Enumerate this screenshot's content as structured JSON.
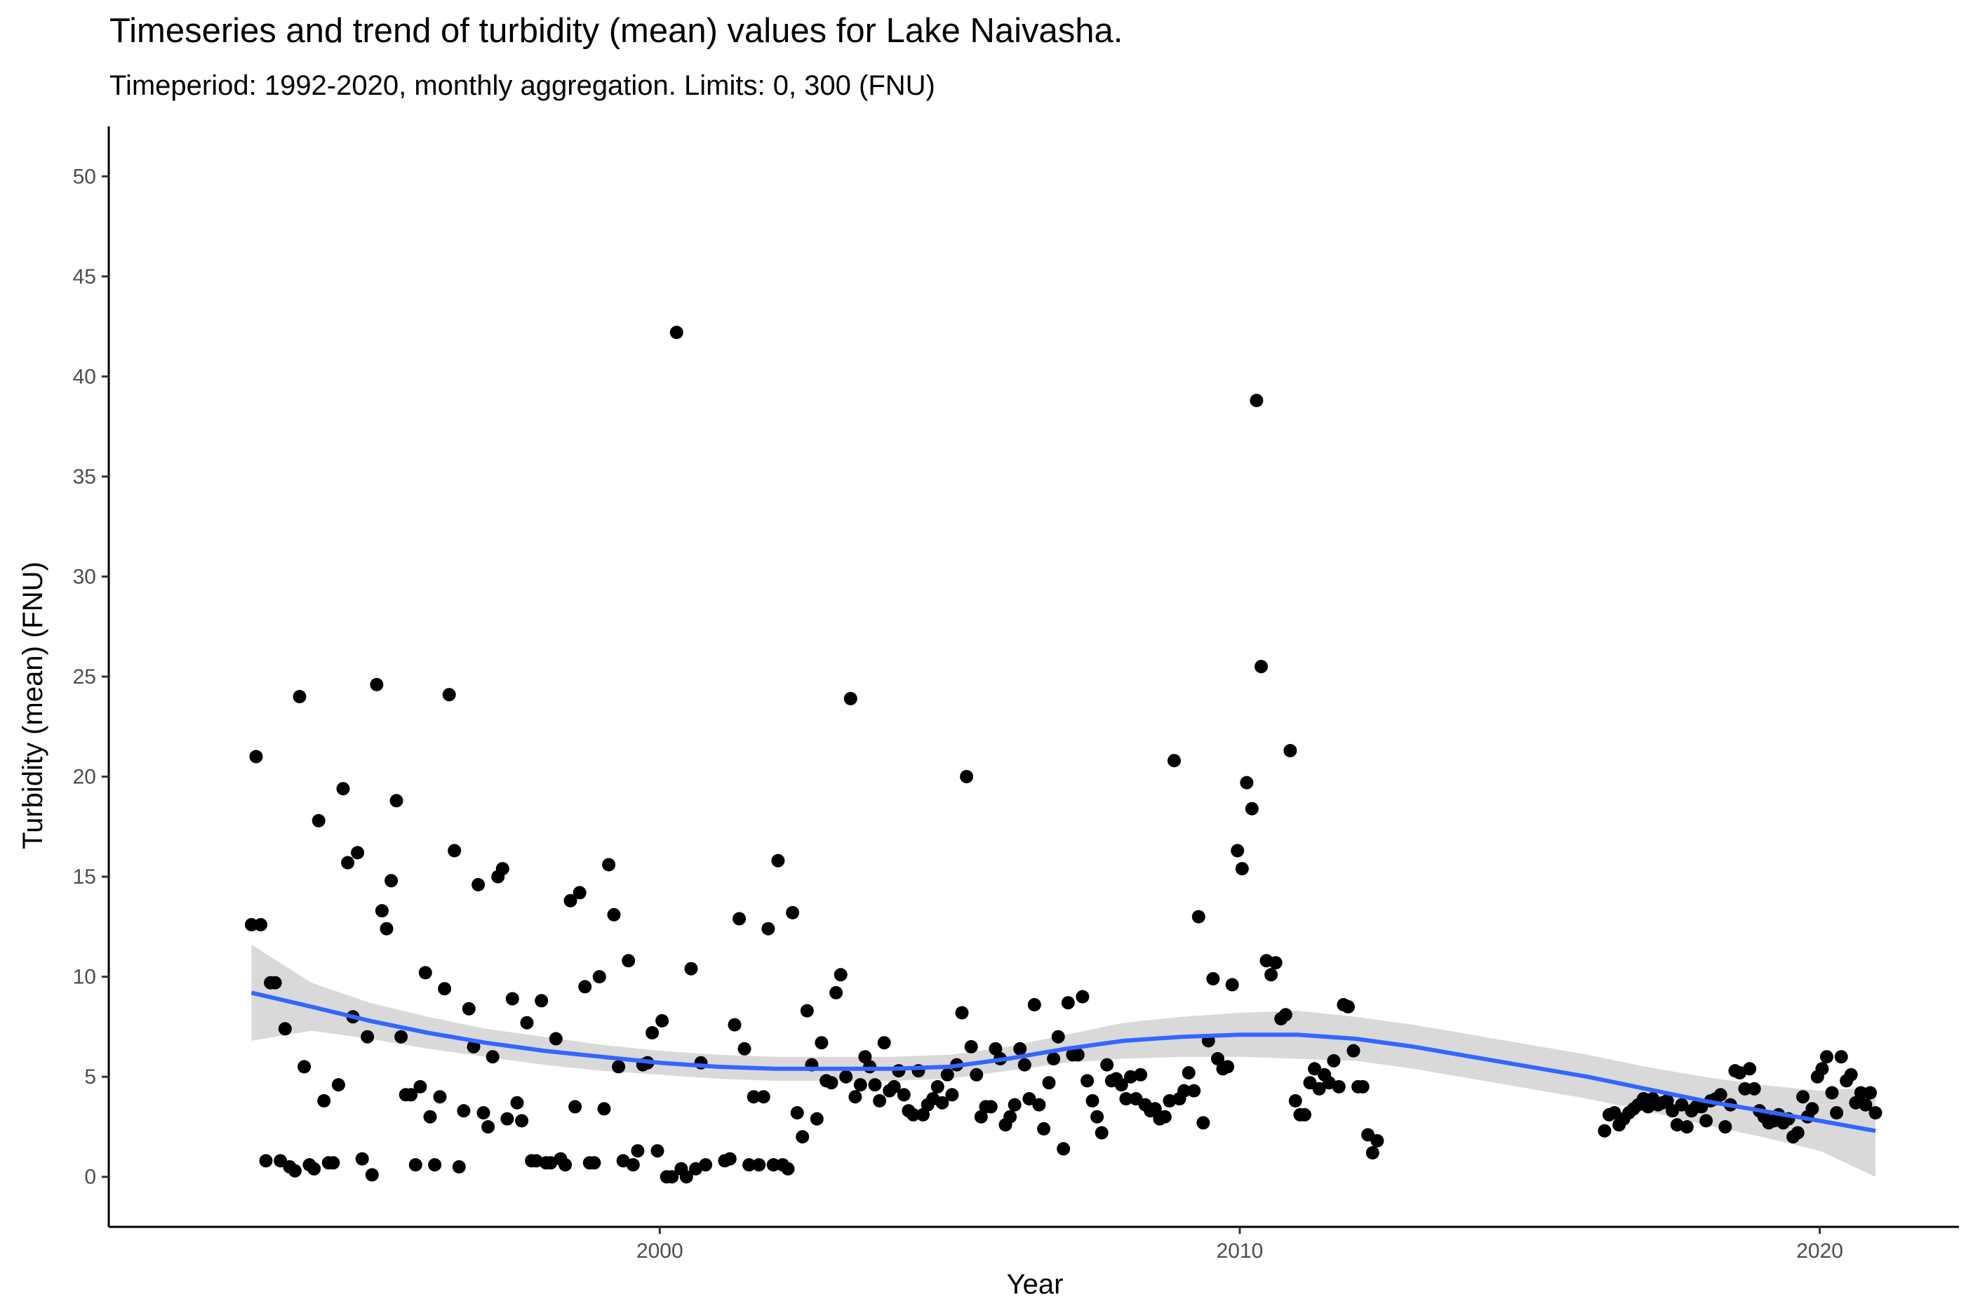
{
  "chart_data": {
    "type": "scatter",
    "title": "Timeseries and trend of turbidity (mean) values for Lake Naivasha.",
    "subtitle": "Timeperiod: 1992-2020, monthly aggregation. Limits: 0, 300 (FNU)",
    "xlabel": "Year",
    "ylabel": "Turbidity (mean) (FNU)",
    "xlim": [
      1990.5,
      2022.4
    ],
    "ylim": [
      -2.5,
      52.5
    ],
    "x_ticks": [
      2000,
      2010,
      2020
    ],
    "x_tick_labels": [
      "2000",
      "2010",
      "2020"
    ],
    "y_ticks": [
      0,
      5,
      10,
      15,
      20,
      25,
      30,
      35,
      40,
      45,
      50
    ],
    "y_tick_labels": [
      "0",
      "5",
      "10",
      "15",
      "20",
      "25",
      "30",
      "35",
      "40",
      "45",
      "50"
    ],
    "grid": false,
    "colors": {
      "points": "#000000",
      "trend": "#3366ff",
      "band": "#d9d9d9",
      "axis": "#000000",
      "tick_text": "#4d4d4d"
    },
    "points": [
      [
        1992.96,
        12.6
      ],
      [
        1993.04,
        21.0
      ],
      [
        1993.12,
        12.6
      ],
      [
        1993.21,
        0.8
      ],
      [
        1993.29,
        9.7
      ],
      [
        1993.37,
        9.7
      ],
      [
        1993.46,
        0.8
      ],
      [
        1993.54,
        7.4
      ],
      [
        1993.62,
        0.5
      ],
      [
        1993.71,
        0.3
      ],
      [
        1993.79,
        24.0
      ],
      [
        1993.87,
        5.5
      ],
      [
        1993.96,
        0.6
      ],
      [
        1994.04,
        0.4
      ],
      [
        1994.12,
        17.8
      ],
      [
        1994.21,
        3.8
      ],
      [
        1994.29,
        0.7
      ],
      [
        1994.37,
        0.7
      ],
      [
        1994.46,
        4.6
      ],
      [
        1994.54,
        19.4
      ],
      [
        1994.62,
        15.7
      ],
      [
        1994.71,
        8.0
      ],
      [
        1994.79,
        16.2
      ],
      [
        1994.87,
        0.9
      ],
      [
        1994.96,
        7.0
      ],
      [
        1995.04,
        0.1
      ],
      [
        1995.12,
        24.6
      ],
      [
        1995.21,
        13.3
      ],
      [
        1995.29,
        12.4
      ],
      [
        1995.37,
        14.8
      ],
      [
        1995.46,
        18.8
      ],
      [
        1995.54,
        7.0
      ],
      [
        1995.62,
        4.1
      ],
      [
        1995.71,
        4.1
      ],
      [
        1995.79,
        0.6
      ],
      [
        1995.87,
        4.5
      ],
      [
        1995.96,
        10.2
      ],
      [
        1996.04,
        3.0
      ],
      [
        1996.12,
        0.6
      ],
      [
        1996.21,
        4.0
      ],
      [
        1996.29,
        9.4
      ],
      [
        1996.37,
        24.1
      ],
      [
        1996.46,
        16.3
      ],
      [
        1996.54,
        0.5
      ],
      [
        1996.62,
        3.3
      ],
      [
        1996.71,
        8.4
      ],
      [
        1996.79,
        6.5
      ],
      [
        1996.87,
        14.6
      ],
      [
        1996.96,
        3.2
      ],
      [
        1997.04,
        2.5
      ],
      [
        1997.12,
        6.0
      ],
      [
        1997.21,
        15.0
      ],
      [
        1997.29,
        15.4
      ],
      [
        1997.37,
        2.9
      ],
      [
        1997.46,
        8.9
      ],
      [
        1997.54,
        3.7
      ],
      [
        1997.62,
        2.8
      ],
      [
        1997.71,
        7.7
      ],
      [
        1997.79,
        0.8
      ],
      [
        1997.87,
        0.8
      ],
      [
        1997.96,
        8.8
      ],
      [
        1998.04,
        0.7
      ],
      [
        1998.12,
        0.7
      ],
      [
        1998.21,
        6.9
      ],
      [
        1998.29,
        0.9
      ],
      [
        1998.37,
        0.6
      ],
      [
        1998.46,
        13.8
      ],
      [
        1998.54,
        3.5
      ],
      [
        1998.62,
        14.2
      ],
      [
        1998.71,
        9.5
      ],
      [
        1998.79,
        0.7
      ],
      [
        1998.87,
        0.7
      ],
      [
        1998.96,
        10.0
      ],
      [
        1999.04,
        3.4
      ],
      [
        1999.12,
        15.6
      ],
      [
        1999.21,
        13.1
      ],
      [
        1999.29,
        5.5
      ],
      [
        1999.37,
        0.8
      ],
      [
        1999.46,
        10.8
      ],
      [
        1999.54,
        0.6
      ],
      [
        1999.62,
        1.3
      ],
      [
        1999.71,
        5.6
      ],
      [
        1999.79,
        5.7
      ],
      [
        1999.87,
        7.2
      ],
      [
        1999.96,
        1.3
      ],
      [
        2000.04,
        7.8
      ],
      [
        2000.12,
        0.0
      ],
      [
        2000.21,
        0.0
      ],
      [
        2000.29,
        42.2
      ],
      [
        2000.37,
        0.4
      ],
      [
        2000.46,
        0.0
      ],
      [
        2000.54,
        10.4
      ],
      [
        2000.62,
        0.4
      ],
      [
        2000.71,
        5.7
      ],
      [
        2000.79,
        0.6
      ],
      [
        2001.12,
        0.8
      ],
      [
        2001.21,
        0.9
      ],
      [
        2001.29,
        7.6
      ],
      [
        2001.37,
        12.9
      ],
      [
        2001.46,
        6.4
      ],
      [
        2001.54,
        0.6
      ],
      [
        2001.62,
        4.0
      ],
      [
        2001.71,
        0.6
      ],
      [
        2001.79,
        4.0
      ],
      [
        2001.87,
        12.4
      ],
      [
        2001.96,
        0.6
      ],
      [
        2002.04,
        15.8
      ],
      [
        2002.12,
        0.6
      ],
      [
        2002.21,
        0.4
      ],
      [
        2002.29,
        13.2
      ],
      [
        2002.37,
        3.2
      ],
      [
        2002.46,
        2.0
      ],
      [
        2002.54,
        8.3
      ],
      [
        2002.62,
        5.6
      ],
      [
        2002.71,
        2.9
      ],
      [
        2002.79,
        6.7
      ],
      [
        2002.87,
        4.8
      ],
      [
        2002.96,
        4.7
      ],
      [
        2003.04,
        9.2
      ],
      [
        2003.12,
        10.1
      ],
      [
        2003.21,
        5.0
      ],
      [
        2003.29,
        23.9
      ],
      [
        2003.37,
        4.0
      ],
      [
        2003.46,
        4.6
      ],
      [
        2003.54,
        6.0
      ],
      [
        2003.62,
        5.5
      ],
      [
        2003.71,
        4.6
      ],
      [
        2003.79,
        3.8
      ],
      [
        2003.87,
        6.7
      ],
      [
        2003.96,
        4.3
      ],
      [
        2004.04,
        4.5
      ],
      [
        2004.12,
        5.3
      ],
      [
        2004.21,
        4.1
      ],
      [
        2004.29,
        3.3
      ],
      [
        2004.37,
        3.1
      ],
      [
        2004.46,
        5.3
      ],
      [
        2004.54,
        3.1
      ],
      [
        2004.62,
        3.6
      ],
      [
        2004.71,
        3.9
      ],
      [
        2004.79,
        4.5
      ],
      [
        2004.87,
        3.7
      ],
      [
        2004.96,
        5.1
      ],
      [
        2005.04,
        4.1
      ],
      [
        2005.12,
        5.6
      ],
      [
        2005.21,
        8.2
      ],
      [
        2005.29,
        20.0
      ],
      [
        2005.37,
        6.5
      ],
      [
        2005.46,
        5.1
      ],
      [
        2005.54,
        3.0
      ],
      [
        2005.62,
        3.5
      ],
      [
        2005.71,
        3.5
      ],
      [
        2005.79,
        6.4
      ],
      [
        2005.87,
        5.9
      ],
      [
        2005.96,
        2.6
      ],
      [
        2006.04,
        3.0
      ],
      [
        2006.12,
        3.6
      ],
      [
        2006.21,
        6.4
      ],
      [
        2006.29,
        5.6
      ],
      [
        2006.37,
        3.9
      ],
      [
        2006.46,
        8.6
      ],
      [
        2006.54,
        3.6
      ],
      [
        2006.62,
        2.4
      ],
      [
        2006.71,
        4.7
      ],
      [
        2006.79,
        5.9
      ],
      [
        2006.87,
        7.0
      ],
      [
        2006.96,
        1.4
      ],
      [
        2007.04,
        8.7
      ],
      [
        2007.12,
        6.1
      ],
      [
        2007.21,
        6.1
      ],
      [
        2007.29,
        9.0
      ],
      [
        2007.37,
        4.8
      ],
      [
        2007.46,
        3.8
      ],
      [
        2007.54,
        3.0
      ],
      [
        2007.62,
        2.2
      ],
      [
        2007.71,
        5.6
      ],
      [
        2007.79,
        4.8
      ],
      [
        2007.87,
        4.9
      ],
      [
        2007.96,
        4.6
      ],
      [
        2008.04,
        3.9
      ],
      [
        2008.12,
        5.0
      ],
      [
        2008.21,
        3.9
      ],
      [
        2008.29,
        5.1
      ],
      [
        2008.37,
        3.6
      ],
      [
        2008.46,
        3.3
      ],
      [
        2008.54,
        3.4
      ],
      [
        2008.62,
        2.9
      ],
      [
        2008.71,
        3.0
      ],
      [
        2008.79,
        3.8
      ],
      [
        2008.87,
        20.8
      ],
      [
        2008.96,
        3.9
      ],
      [
        2009.04,
        4.3
      ],
      [
        2009.12,
        5.2
      ],
      [
        2009.21,
        4.3
      ],
      [
        2009.29,
        13.0
      ],
      [
        2009.37,
        2.7
      ],
      [
        2009.46,
        6.8
      ],
      [
        2009.54,
        9.9
      ],
      [
        2009.62,
        5.9
      ],
      [
        2009.71,
        5.4
      ],
      [
        2009.79,
        5.5
      ],
      [
        2009.87,
        9.6
      ],
      [
        2009.96,
        16.3
      ],
      [
        2010.04,
        15.4
      ],
      [
        2010.12,
        19.7
      ],
      [
        2010.21,
        18.4
      ],
      [
        2010.29,
        38.8
      ],
      [
        2010.37,
        25.5
      ],
      [
        2010.46,
        10.8
      ],
      [
        2010.54,
        10.1
      ],
      [
        2010.62,
        10.7
      ],
      [
        2010.71,
        7.9
      ],
      [
        2010.79,
        8.1
      ],
      [
        2010.87,
        21.3
      ],
      [
        2010.96,
        3.8
      ],
      [
        2011.04,
        3.1
      ],
      [
        2011.12,
        3.1
      ],
      [
        2011.21,
        4.7
      ],
      [
        2011.29,
        5.4
      ],
      [
        2011.37,
        4.4
      ],
      [
        2011.46,
        5.1
      ],
      [
        2011.54,
        4.7
      ],
      [
        2011.62,
        5.8
      ],
      [
        2011.71,
        4.5
      ],
      [
        2011.79,
        8.6
      ],
      [
        2011.87,
        8.5
      ],
      [
        2011.96,
        6.3
      ],
      [
        2012.04,
        4.5
      ],
      [
        2012.12,
        4.5
      ],
      [
        2012.21,
        2.1
      ],
      [
        2012.29,
        1.2
      ],
      [
        2012.37,
        1.8
      ],
      [
        2016.29,
        2.3
      ],
      [
        2016.37,
        3.1
      ],
      [
        2016.46,
        3.2
      ],
      [
        2016.54,
        2.6
      ],
      [
        2016.62,
        2.9
      ],
      [
        2016.71,
        3.2
      ],
      [
        2016.79,
        3.4
      ],
      [
        2016.87,
        3.6
      ],
      [
        2016.96,
        3.9
      ],
      [
        2017.04,
        3.5
      ],
      [
        2017.12,
        3.9
      ],
      [
        2017.21,
        3.6
      ],
      [
        2017.29,
        3.7
      ],
      [
        2017.37,
        3.8
      ],
      [
        2017.46,
        3.3
      ],
      [
        2017.54,
        2.6
      ],
      [
        2017.62,
        3.6
      ],
      [
        2017.71,
        2.5
      ],
      [
        2017.79,
        3.3
      ],
      [
        2017.87,
        3.5
      ],
      [
        2017.96,
        3.5
      ],
      [
        2018.04,
        2.8
      ],
      [
        2018.12,
        3.8
      ],
      [
        2018.21,
        3.9
      ],
      [
        2018.29,
        4.1
      ],
      [
        2018.37,
        2.5
      ],
      [
        2018.46,
        3.6
      ],
      [
        2018.54,
        5.3
      ],
      [
        2018.62,
        5.2
      ],
      [
        2018.71,
        4.4
      ],
      [
        2018.79,
        5.4
      ],
      [
        2018.87,
        4.4
      ],
      [
        2018.96,
        3.3
      ],
      [
        2019.04,
        3.0
      ],
      [
        2019.12,
        2.7
      ],
      [
        2019.21,
        2.8
      ],
      [
        2019.29,
        3.1
      ],
      [
        2019.37,
        2.7
      ],
      [
        2019.46,
        2.9
      ],
      [
        2019.54,
        2.0
      ],
      [
        2019.62,
        2.2
      ],
      [
        2019.71,
        4.0
      ],
      [
        2019.79,
        3.0
      ],
      [
        2019.87,
        3.4
      ],
      [
        2019.96,
        5.0
      ],
      [
        2020.04,
        5.4
      ],
      [
        2020.12,
        6.0
      ],
      [
        2020.21,
        4.2
      ],
      [
        2020.29,
        3.2
      ],
      [
        2020.37,
        6.0
      ],
      [
        2020.46,
        4.8
      ],
      [
        2020.54,
        5.1
      ],
      [
        2020.62,
        3.7
      ],
      [
        2020.71,
        4.2
      ],
      [
        2020.79,
        3.6
      ],
      [
        2020.87,
        4.2
      ],
      [
        2020.96,
        3.2
      ]
    ],
    "trend": {
      "method": "loess",
      "line": [
        [
          1992.96,
          9.2
        ],
        [
          1994.0,
          8.5
        ],
        [
          1995.0,
          7.8
        ],
        [
          1996.0,
          7.2
        ],
        [
          1997.0,
          6.7
        ],
        [
          1998.0,
          6.3
        ],
        [
          1999.0,
          6.0
        ],
        [
          2000.0,
          5.7
        ],
        [
          2001.0,
          5.5
        ],
        [
          2002.0,
          5.4
        ],
        [
          2003.0,
          5.4
        ],
        [
          2004.0,
          5.4
        ],
        [
          2005.0,
          5.5
        ],
        [
          2006.0,
          5.9
        ],
        [
          2007.0,
          6.4
        ],
        [
          2008.0,
          6.8
        ],
        [
          2009.0,
          7.0
        ],
        [
          2010.0,
          7.1
        ],
        [
          2011.0,
          7.1
        ],
        [
          2012.0,
          6.9
        ],
        [
          2013.0,
          6.5
        ],
        [
          2014.0,
          6.0
        ],
        [
          2015.0,
          5.5
        ],
        [
          2016.0,
          5.0
        ],
        [
          2017.0,
          4.4
        ],
        [
          2018.0,
          3.8
        ],
        [
          2019.0,
          3.3
        ],
        [
          2020.0,
          2.8
        ],
        [
          2020.96,
          2.3
        ]
      ],
      "upper": [
        [
          1992.96,
          11.6
        ],
        [
          1994.0,
          9.7
        ],
        [
          1995.0,
          8.7
        ],
        [
          1996.0,
          8.0
        ],
        [
          1997.0,
          7.4
        ],
        [
          1998.0,
          7.0
        ],
        [
          1999.0,
          6.6
        ],
        [
          2000.0,
          6.3
        ],
        [
          2001.0,
          6.1
        ],
        [
          2002.0,
          6.0
        ],
        [
          2003.0,
          6.0
        ],
        [
          2004.0,
          6.0
        ],
        [
          2005.0,
          6.1
        ],
        [
          2006.0,
          6.5
        ],
        [
          2007.0,
          7.1
        ],
        [
          2008.0,
          7.7
        ],
        [
          2009.0,
          8.0
        ],
        [
          2010.0,
          8.2
        ],
        [
          2011.0,
          8.3
        ],
        [
          2012.0,
          8.0
        ],
        [
          2013.0,
          7.6
        ],
        [
          2014.0,
          7.1
        ],
        [
          2015.0,
          6.6
        ],
        [
          2016.0,
          6.1
        ],
        [
          2017.0,
          5.5
        ],
        [
          2018.0,
          5.0
        ],
        [
          2019.0,
          4.6
        ],
        [
          2020.0,
          4.3
        ],
        [
          2020.96,
          4.5
        ]
      ],
      "lower": [
        [
          1992.96,
          6.8
        ],
        [
          1994.0,
          7.3
        ],
        [
          1995.0,
          6.9
        ],
        [
          1996.0,
          6.4
        ],
        [
          1997.0,
          6.0
        ],
        [
          1998.0,
          5.6
        ],
        [
          1999.0,
          5.3
        ],
        [
          2000.0,
          5.1
        ],
        [
          2001.0,
          4.9
        ],
        [
          2002.0,
          4.8
        ],
        [
          2003.0,
          4.8
        ],
        [
          2004.0,
          4.8
        ],
        [
          2005.0,
          4.9
        ],
        [
          2006.0,
          5.3
        ],
        [
          2007.0,
          5.7
        ],
        [
          2008.0,
          5.9
        ],
        [
          2009.0,
          6.0
        ],
        [
          2010.0,
          6.0
        ],
        [
          2011.0,
          5.9
        ],
        [
          2012.0,
          5.8
        ],
        [
          2013.0,
          5.4
        ],
        [
          2014.0,
          4.9
        ],
        [
          2015.0,
          4.4
        ],
        [
          2016.0,
          3.9
        ],
        [
          2017.0,
          3.3
        ],
        [
          2018.0,
          2.6
        ],
        [
          2019.0,
          2.0
        ],
        [
          2020.0,
          1.3
        ],
        [
          2020.96,
          0.0
        ]
      ]
    }
  }
}
